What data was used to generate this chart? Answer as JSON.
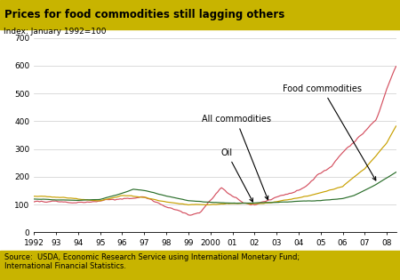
{
  "title": "Prices for food commodities still lagging others",
  "subtitle": "Index: January 1992=100",
  "title_bg": "#c8b400",
  "footer_bg": "#c8b400",
  "footer_text": "Source:  USDA, Economic Research Service using International Monetary Fund;\nInternational Financial Statistics.",
  "ylim": [
    0,
    700
  ],
  "yticks": [
    0,
    100,
    200,
    300,
    400,
    500,
    600,
    700
  ],
  "xtick_labels": [
    "1992",
    "93",
    "94",
    "95",
    "96",
    "97",
    "98",
    "99",
    "2000",
    "01",
    "02",
    "03",
    "04",
    "05",
    "06",
    "07",
    "08"
  ],
  "line_colors": {
    "oil": "#d45060",
    "all": "#c8a000",
    "food": "#2a6e2a"
  }
}
